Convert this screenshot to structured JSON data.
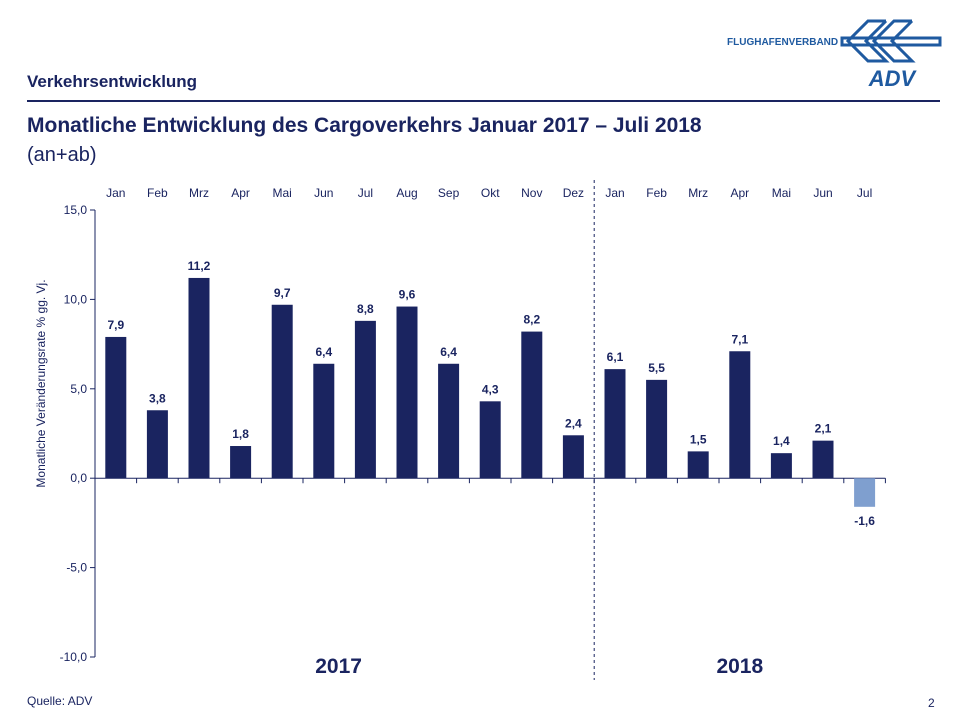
{
  "header": {
    "section": "Verkehrsentwicklung",
    "logo_text": "FLUGHAFENVERBAND",
    "logo_mark": "ADV"
  },
  "title": "Monatliche Entwicklung des Cargoverkehrs Januar 2017 – Juli 2018",
  "subtitle": "(an+ab)",
  "footer": {
    "source": "Quelle: ADV",
    "page": "2"
  },
  "colors": {
    "bar": "#1a2460",
    "bar_negative": "#7f9fcf",
    "text": "#1a2460",
    "logo": "#1f5aa0"
  },
  "chart_data": {
    "type": "bar",
    "categories": [
      "Jan",
      "Feb",
      "Mrz",
      "Apr",
      "Mai",
      "Jun",
      "Jul",
      "Aug",
      "Sep",
      "Okt",
      "Nov",
      "Dez",
      "Jan",
      "Feb",
      "Mrz",
      "Apr",
      "Mai",
      "Jun",
      "Jul"
    ],
    "values": [
      7.9,
      3.8,
      11.2,
      1.8,
      9.7,
      6.4,
      8.8,
      9.6,
      6.4,
      4.3,
      8.2,
      2.4,
      6.1,
      5.5,
      1.5,
      7.1,
      1.4,
      2.1,
      -1.6
    ],
    "data_labels": [
      "7,9",
      "3,8",
      "11,2",
      "1,8",
      "9,7",
      "6,4",
      "8,8",
      "9,6",
      "6,4",
      "4,3",
      "8,2",
      "2,4",
      "6,1",
      "5,5",
      "1,5",
      "7,1",
      "1,4",
      "2,1",
      "-1,6"
    ],
    "groups": [
      {
        "label": "2017",
        "count": 12
      },
      {
        "label": "2018",
        "count": 7
      }
    ],
    "ylabel": "Monatliche Veränderungsrate % gg. Vj.",
    "ylim": [
      -10,
      15
    ],
    "yticks": [
      15,
      10,
      5,
      0,
      -5,
      -10
    ],
    "ytick_labels": [
      "15,0",
      "10,0",
      "5,0",
      "0,0",
      "-5,0",
      "-10,0"
    ],
    "grid": false,
    "legend": "none"
  }
}
